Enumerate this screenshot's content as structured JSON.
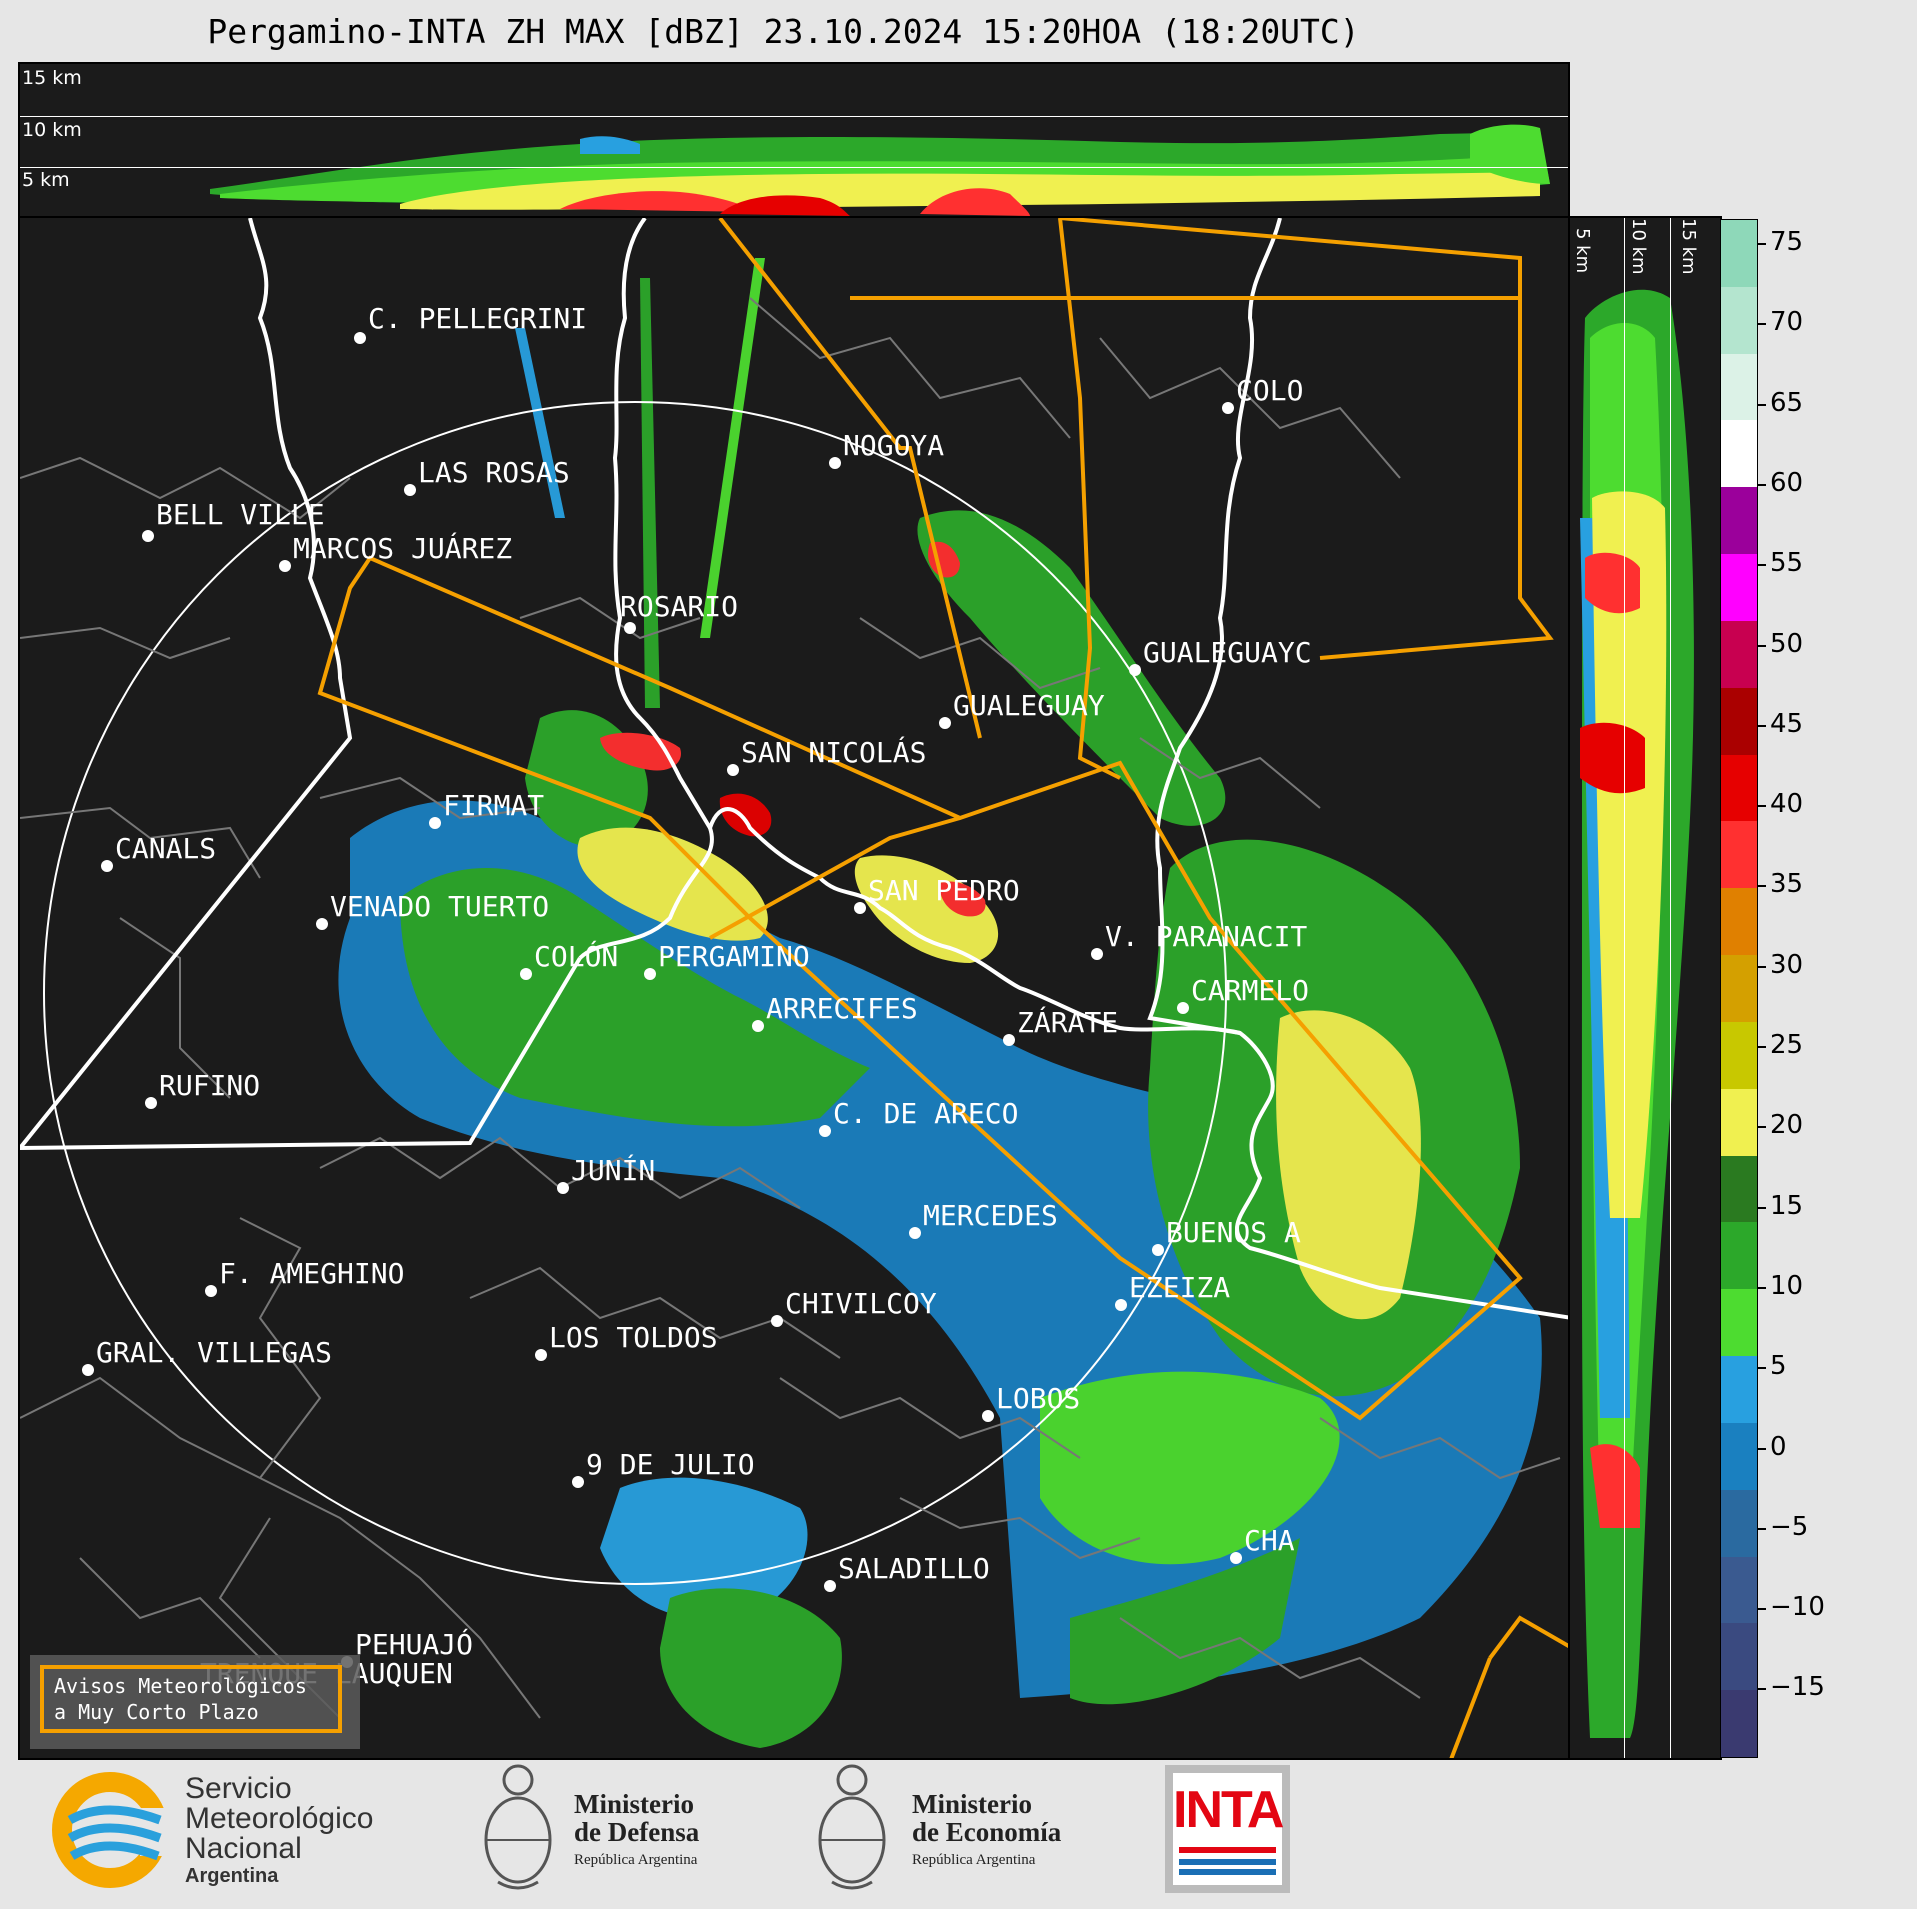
{
  "title": "Pergamino-INTA ZH MAX [dBZ] 23.10.2024 15:20HOA (18:20UTC)",
  "top_panel": {
    "levels": [
      "15 km",
      "10 km",
      "5 km"
    ]
  },
  "side_panel": {
    "levels": [
      "5 km",
      "10 km",
      "15 km"
    ]
  },
  "colorbar": {
    "ticks": [
      "75",
      "70",
      "65",
      "60",
      "55",
      "50",
      "45",
      "40",
      "35",
      "30",
      "25",
      "20",
      "15",
      "10",
      "5",
      "0",
      "−5",
      "−10",
      "−15"
    ],
    "colors": [
      "#8ed8b9",
      "#b4e5cf",
      "#dcf2e7",
      "#ffffff",
      "#9b009b",
      "#ff00ff",
      "#c80050",
      "#aa0000",
      "#e60000",
      "#ff3030",
      "#e08000",
      "#d4a000",
      "#c8c800",
      "#f0f050",
      "#2a7a20",
      "#2ca82a",
      "#4ddc30",
      "#28a0e0",
      "#1a80c0",
      "#2a6aa0",
      "#3a5a90",
      "#3a4a80",
      "#3a3a70"
    ]
  },
  "cities": [
    {
      "name": "C. PELLEGRINI"
    },
    {
      "name": "LAS ROSAS"
    },
    {
      "name": "BELL VILLE"
    },
    {
      "name": "MARCOS JUÁREZ"
    },
    {
      "name": "NOGOYA"
    },
    {
      "name": "COLO"
    },
    {
      "name": "ROSARIO"
    },
    {
      "name": "GUALEGUAYC"
    },
    {
      "name": "GUALEGUAY"
    },
    {
      "name": "SAN NICOLÁS"
    },
    {
      "name": "FIRMAT"
    },
    {
      "name": "CANALS"
    },
    {
      "name": "SAN PEDRO"
    },
    {
      "name": "VENADO TUERTO"
    },
    {
      "name": "V. PARANACIT"
    },
    {
      "name": "COLÓN"
    },
    {
      "name": "PERGAMINO"
    },
    {
      "name": "CARMELO"
    },
    {
      "name": "ARRECIFES"
    },
    {
      "name": "ZÁRATE"
    },
    {
      "name": "RUFINO"
    },
    {
      "name": "C. DE ARECO"
    },
    {
      "name": "JUNÍN"
    },
    {
      "name": "MERCEDES"
    },
    {
      "name": "BUENOS A"
    },
    {
      "name": "F. AMEGHINO"
    },
    {
      "name": "EZEIZA"
    },
    {
      "name": "CHIVILCOY"
    },
    {
      "name": "LOS TOLDOS"
    },
    {
      "name": "GRAL. VILLEGAS"
    },
    {
      "name": "LOBOS"
    },
    {
      "name": "9 DE JULIO"
    },
    {
      "name": "CHA"
    },
    {
      "name": "SALADILLO"
    },
    {
      "name": "PEHUAJÓ"
    },
    {
      "name": "TRENQUE LAUQUEN"
    }
  ],
  "warning_box": {
    "line1": "Avisos Meteorológicos",
    "line2": "a Muy Corto Plazo"
  },
  "footer": {
    "smn": [
      "Servicio",
      "Meteorológico",
      "Nacional",
      "Argentina"
    ],
    "defensa": [
      "Ministerio",
      "de Defensa",
      "República Argentina"
    ],
    "economia": [
      "Ministerio",
      "de Economía",
      "República Argentina"
    ],
    "inta": "INTA"
  }
}
